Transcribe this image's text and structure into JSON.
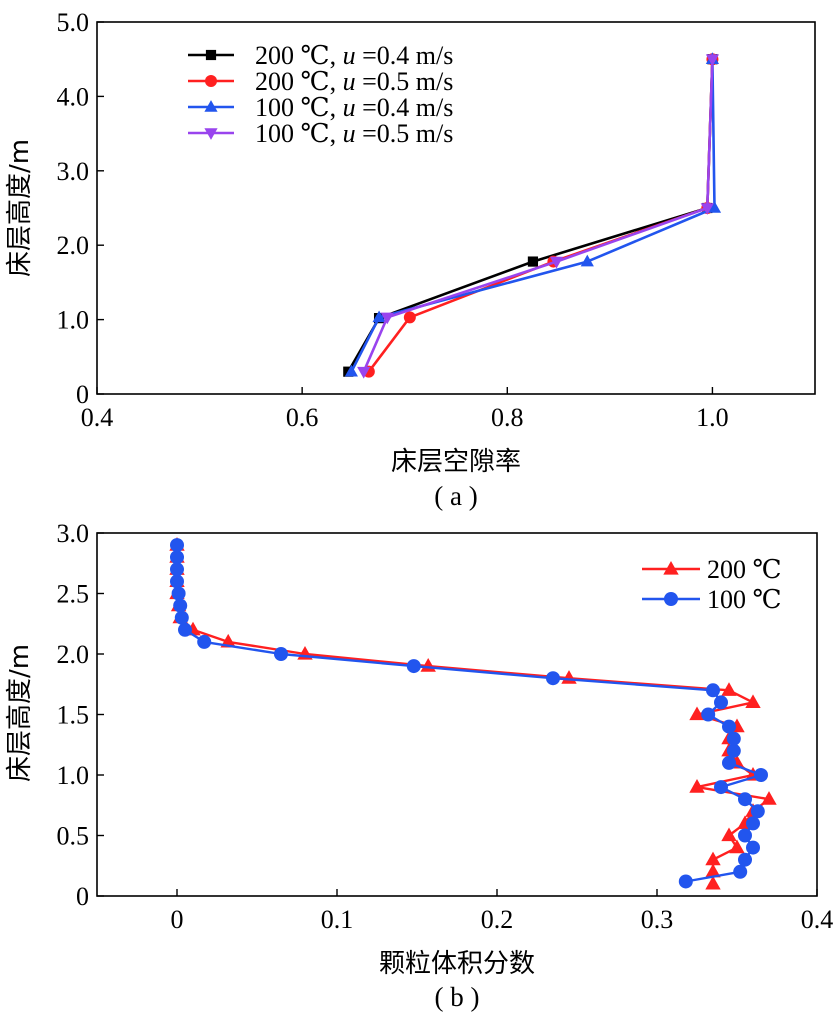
{
  "chart_data": [
    {
      "type": "line",
      "caption": "( a )",
      "xlabel": "床层空隙率",
      "ylabel": "床层高度/m",
      "xlim": [
        0.4,
        1.1
      ],
      "ylim": [
        0,
        5.0
      ],
      "xticks": [
        "0.4",
        "0.6",
        "0.8",
        "1.0"
      ],
      "yticks": [
        "0",
        "1.0",
        "2.0",
        "3.0",
        "4.0",
        "5.0"
      ],
      "legend_position": "top-left",
      "series": [
        {
          "name": "200 ℃, u =0.4 m/s",
          "color": "#000000",
          "marker": "square",
          "points": [
            [
              0.645,
              0.3
            ],
            [
              0.675,
              1.02
            ],
            [
              0.825,
              1.78
            ],
            [
              0.995,
              2.5
            ],
            [
              1.0,
              4.5
            ]
          ]
        },
        {
          "name": "200 ℃, u =0.5 m/s",
          "color": "#ff2020",
          "marker": "circle",
          "points": [
            [
              0.665,
              0.3
            ],
            [
              0.705,
              1.03
            ],
            [
              0.845,
              1.78
            ],
            [
              0.995,
              2.5
            ],
            [
              1.0,
              4.5
            ]
          ]
        },
        {
          "name": "100 ℃, u =0.4 m/s",
          "color": "#2255ee",
          "marker": "triangle-up",
          "points": [
            [
              0.648,
              0.3
            ],
            [
              0.675,
              1.03
            ],
            [
              0.878,
              1.78
            ],
            [
              1.002,
              2.5
            ],
            [
              1.0,
              4.5
            ]
          ]
        },
        {
          "name": "100 ℃, u =0.5 m/s",
          "color": "#9944ee",
          "marker": "triangle-down",
          "points": [
            [
              0.66,
              0.3
            ],
            [
              0.683,
              1.03
            ],
            [
              0.848,
              1.78
            ],
            [
              0.995,
              2.5
            ],
            [
              1.0,
              4.5
            ]
          ]
        }
      ]
    },
    {
      "type": "line",
      "caption": "( b )",
      "xlabel": "颗粒体积分数",
      "ylabel": "床层高度/m",
      "xlim": [
        -0.05,
        0.4
      ],
      "ylim": [
        0,
        3.0
      ],
      "xticks": [
        "0",
        "0.1",
        "0.2",
        "0.3",
        "0.4"
      ],
      "yticks": [
        "0",
        "0.5",
        "1.0",
        "1.5",
        "2.0",
        "2.5",
        "3.0"
      ],
      "legend_position": "top-right",
      "series": [
        {
          "name": "200 ℃",
          "color": "#ff2020",
          "marker": "triangle-up",
          "points": [
            [
              0.335,
              0.1
            ],
            [
              0.335,
              0.2
            ],
            [
              0.335,
              0.3
            ],
            [
              0.35,
              0.4
            ],
            [
              0.345,
              0.5
            ],
            [
              0.355,
              0.6
            ],
            [
              0.36,
              0.7
            ],
            [
              0.37,
              0.8
            ],
            [
              0.325,
              0.9
            ],
            [
              0.36,
              1.0
            ],
            [
              0.35,
              1.1
            ],
            [
              0.345,
              1.2
            ],
            [
              0.345,
              1.3
            ],
            [
              0.35,
              1.4
            ],
            [
              0.325,
              1.5
            ],
            [
              0.36,
              1.6
            ],
            [
              0.345,
              1.7
            ],
            [
              0.245,
              1.8
            ],
            [
              0.157,
              1.9
            ],
            [
              0.08,
              2.0
            ],
            [
              0.032,
              2.1
            ],
            [
              0.01,
              2.2
            ],
            [
              0.002,
              2.3
            ],
            [
              0.001,
              2.4
            ],
            [
              0.0,
              2.5
            ],
            [
              0.0,
              2.6
            ],
            [
              0.0,
              2.7
            ],
            [
              0.0,
              2.8
            ],
            [
              0.0,
              2.9
            ]
          ]
        },
        {
          "name": "100 ℃",
          "color": "#2255ee",
          "marker": "circle",
          "points": [
            [
              0.318,
              0.12
            ],
            [
              0.352,
              0.2
            ],
            [
              0.355,
              0.3
            ],
            [
              0.36,
              0.4
            ],
            [
              0.355,
              0.5
            ],
            [
              0.36,
              0.6
            ],
            [
              0.363,
              0.7
            ],
            [
              0.355,
              0.8
            ],
            [
              0.34,
              0.9
            ],
            [
              0.365,
              1.0
            ],
            [
              0.345,
              1.1
            ],
            [
              0.348,
              1.2
            ],
            [
              0.348,
              1.3
            ],
            [
              0.345,
              1.4
            ],
            [
              0.332,
              1.5
            ],
            [
              0.34,
              1.6
            ],
            [
              0.335,
              1.7
            ],
            [
              0.235,
              1.8
            ],
            [
              0.148,
              1.9
            ],
            [
              0.065,
              2.0
            ],
            [
              0.017,
              2.1
            ],
            [
              0.005,
              2.2
            ],
            [
              0.003,
              2.3
            ],
            [
              0.002,
              2.4
            ],
            [
              0.001,
              2.5
            ],
            [
              0.0,
              2.6
            ],
            [
              0.0,
              2.7
            ],
            [
              0.0,
              2.8
            ],
            [
              0.0,
              2.9
            ]
          ]
        }
      ]
    }
  ]
}
